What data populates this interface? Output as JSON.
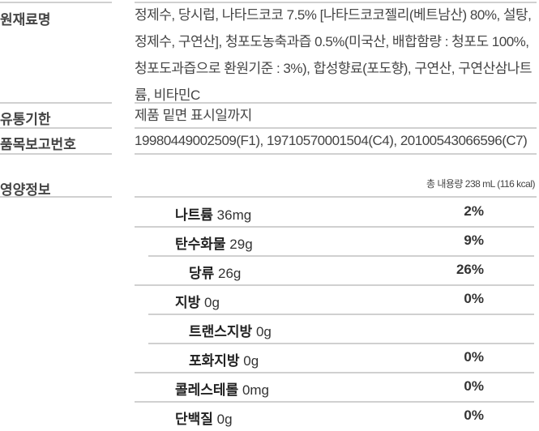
{
  "info": [
    {
      "label": "원재료명",
      "value": "정제수, 당시럽, 나타드코코 7.5% [나타드코코젤리(베트남산) 80%, 설탕, 정제수, 구연산], 청포도농축과즙 0.5%(미국산, 배합함량 : 청포도 100%, 청포도과즙으로 환원기준 : 3%), 합성향료(포도향), 구연산, 구연산삼나트륨, 비타민C"
    },
    {
      "label": "유통기한",
      "value": "제품 밑면 표시일까지"
    },
    {
      "label": "품목보고번호",
      "value": "19980449002509(F1), 19710570001504(C4), 20100543066596(C7)"
    }
  ],
  "nutrition": {
    "label": "영양정보",
    "total": "총 내용량 238 mL (116 kcal)",
    "rows": [
      {
        "name": "나트륨",
        "amount": "36mg",
        "pct": "2%"
      },
      {
        "name": "탄수화물",
        "amount": "29g",
        "pct": "9%"
      },
      {
        "name": "당류",
        "amount": "26g",
        "pct": "26%"
      },
      {
        "name": "지방",
        "amount": "0g",
        "pct": "0%"
      },
      {
        "name": "트랜스지방",
        "amount": "0g",
        "pct": ""
      },
      {
        "name": "포화지방",
        "amount": "0g",
        "pct": "0%"
      },
      {
        "name": "콜레스테롤",
        "amount": "0mg",
        "pct": "0%"
      },
      {
        "name": "단백질",
        "amount": "0g",
        "pct": "0%"
      }
    ]
  }
}
